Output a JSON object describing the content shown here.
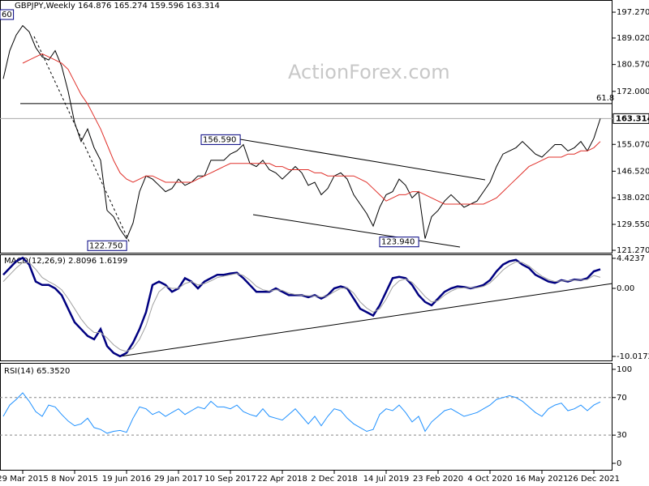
{
  "chart_data": [
    {
      "type": "line",
      "title": "GBPJPY,Weekly  164.876 165.274 159.596 163.314",
      "watermark": "ActionForex.com",
      "categories": [
        null,
        null,
        null,
        "29 Mar 2015",
        null,
        null,
        null,
        null,
        null,
        null,
        null,
        "8 Nov 2015",
        null,
        null,
        null,
        null,
        null,
        null,
        null,
        "19 Jun 2016",
        null,
        null,
        null,
        null,
        null,
        null,
        null,
        "29 Jan 2017",
        null,
        null,
        null,
        null,
        null,
        null,
        null,
        "10 Sep 2017",
        null,
        null,
        null,
        null,
        null,
        null,
        null,
        "22 Apr 2018",
        null,
        null,
        null,
        null,
        null,
        null,
        null,
        "2 Dec 2018",
        null,
        null,
        null,
        null,
        null,
        null,
        null,
        "14 Jul 2019",
        null,
        null,
        null,
        null,
        null,
        null,
        null,
        "23 Feb 2020",
        null,
        null,
        null,
        null,
        null,
        null,
        null,
        "4 Oct 2020",
        null,
        null,
        null,
        null,
        null,
        null,
        null,
        "16 May 2021",
        null,
        null,
        null,
        null,
        null,
        null,
        null,
        "26 Dec 2021",
        null
      ],
      "series": [
        {
          "color": "#000000",
          "values": [
            176,
            185,
            190,
            193,
            191,
            186,
            183,
            182,
            185,
            180,
            172,
            162,
            156,
            160,
            154,
            150,
            134,
            132,
            128,
            125,
            130,
            140,
            145,
            144,
            142,
            140,
            141,
            144,
            142,
            143,
            145,
            145,
            150,
            150,
            150,
            152,
            153,
            155,
            149,
            148,
            150,
            147,
            146,
            144,
            146,
            148,
            146,
            142,
            143,
            139,
            141,
            145,
            146,
            144,
            139,
            136,
            133,
            129,
            135,
            139,
            140,
            144,
            142,
            138,
            140,
            125,
            132,
            134,
            137,
            139,
            137,
            135,
            136,
            137,
            140,
            143,
            148,
            152,
            153,
            154,
            156,
            154,
            152,
            151,
            153,
            155,
            155,
            153,
            154,
            156,
            153,
            157,
            163.314
          ]
        },
        {
          "color": "#e0302a",
          "values": [
            null,
            null,
            null,
            181,
            182,
            183,
            184,
            183,
            182,
            181,
            179,
            175,
            171,
            168,
            164,
            160,
            155,
            150,
            146,
            144,
            143,
            144,
            145,
            145,
            144,
            143,
            143,
            143,
            143,
            143,
            144,
            145,
            146,
            147,
            148,
            149,
            149,
            149,
            149,
            149,
            149,
            149,
            148,
            148,
            147,
            147,
            147,
            147,
            146,
            146,
            145,
            145,
            145,
            145,
            145,
            144,
            143,
            141,
            139,
            137,
            138,
            139,
            139,
            140,
            140,
            139,
            138,
            137,
            136,
            136,
            136,
            136,
            136,
            136,
            136,
            137,
            138,
            140,
            142,
            144,
            146,
            148,
            149,
            150,
            151,
            151,
            151,
            152,
            152,
            153,
            153,
            154,
            156
          ]
        }
      ],
      "ylim": [
        120.5,
        200.9
      ],
      "yticks": [
        {
          "value": 197.27,
          "label": "197.270"
        },
        {
          "value": 189.02,
          "label": "189.020"
        },
        {
          "value": 180.57,
          "label": "180.570"
        },
        {
          "value": 172.0,
          "label": "172.000"
        },
        {
          "value": 155.07,
          "label": "155.070"
        },
        {
          "value": 146.52,
          "label": "146.520"
        },
        {
          "value": 138.02,
          "label": "138.020"
        },
        {
          "value": 129.55,
          "label": "129.550"
        },
        {
          "value": 121.27,
          "label": "121.270"
        }
      ],
      "price_line": {
        "value": 163.314,
        "label": "163.314"
      },
      "fib_line": {
        "value": 168.1,
        "label": "61.8"
      },
      "annotations": [
        {
          "text": "156.590",
          "value": 156.59
        },
        {
          "text": "122.750",
          "value": 122.75
        },
        {
          "text": "123.940",
          "value": 123.94
        },
        {
          "text": "60"
        }
      ]
    },
    {
      "type": "line",
      "title": "MACD(12,26,9) 2.8096 1.6199",
      "series": [
        {
          "color": "#000080",
          "values": [
            2,
            3,
            4,
            4.5,
            3.5,
            1,
            0.5,
            0.5,
            0,
            -1,
            -3,
            -5,
            -6,
            -7,
            -7.5,
            -6,
            -8.5,
            -9.5,
            -10,
            -9.5,
            -8,
            -6,
            -3.5,
            0.5,
            1,
            0.5,
            -0.5,
            0,
            1.5,
            1,
            0,
            1,
            1.5,
            2,
            2,
            2.2,
            2.3,
            1.5,
            0.5,
            -0.5,
            -0.5,
            -0.5,
            0,
            -0.5,
            -1,
            -1,
            -1,
            -1.3,
            -1,
            -1.5,
            -1,
            0,
            0.3,
            0,
            -1.5,
            -3,
            -3.5,
            -4,
            -2.5,
            -0.5,
            1.5,
            1.7,
            1.5,
            0.5,
            -1,
            -2,
            -2.5,
            -1.5,
            -0.5,
            0,
            0.3,
            0.2,
            0,
            0.2,
            0.5,
            1.2,
            2.5,
            3.5,
            4,
            4.2,
            3.5,
            3,
            2,
            1.5,
            1,
            0.8,
            1.2,
            1,
            1.3,
            1.2,
            1.5,
            2.5,
            2.8096
          ]
        },
        {
          "color": "#a0a0a0",
          "values": [
            1,
            2,
            3,
            3.8,
            3.8,
            2.8,
            1.6,
            1,
            0.5,
            -0.2,
            -1.5,
            -3,
            -4.5,
            -5.7,
            -6.5,
            -6.5,
            -7.3,
            -8.3,
            -9,
            -9.3,
            -8.8,
            -7.5,
            -5.5,
            -2.5,
            -0.5,
            0.3,
            0,
            0,
            0.7,
            1,
            0.5,
            0.7,
            1.1,
            1.6,
            1.8,
            2,
            2.2,
            1.9,
            1.2,
            0.3,
            -0.2,
            -0.4,
            -0.2,
            -0.3,
            -0.7,
            -0.9,
            -1,
            -1.1,
            -1.1,
            -1.3,
            -1.1,
            -0.5,
            0,
            0.1,
            -0.7,
            -2,
            -2.9,
            -3.5,
            -3,
            -1.6,
            0.2,
            1.1,
            1.4,
            0.9,
            -0.1,
            -1.2,
            -2,
            -1.8,
            -1,
            -0.4,
            0,
            0.1,
            0.1,
            0.1,
            0.3,
            0.8,
            1.7,
            2.7,
            3.4,
            3.9,
            3.8,
            3.3,
            2.5,
            1.8,
            1.3,
            1,
            1.1,
            1.1,
            1.2,
            1.2,
            1.3,
            1.9,
            1.6199
          ]
        }
      ],
      "ylim": [
        -10.61,
        4.89
      ],
      "yticks": [
        4.4237,
        {
          "value": 0,
          "label": "0.00"
        },
        -10.0172
      ]
    },
    {
      "type": "line",
      "title": "RSI(14) 65.3520",
      "series": [
        {
          "color": "#1e90ff",
          "values": [
            50,
            62,
            68,
            75,
            66,
            55,
            50,
            62,
            60,
            52,
            45,
            40,
            42,
            48,
            38,
            36,
            32,
            34,
            35,
            33,
            48,
            60,
            58,
            52,
            55,
            50,
            54,
            58,
            52,
            56,
            60,
            58,
            66,
            60,
            60,
            58,
            62,
            55,
            52,
            50,
            58,
            50,
            48,
            46,
            52,
            58,
            50,
            42,
            50,
            40,
            50,
            58,
            56,
            48,
            42,
            38,
            34,
            36,
            52,
            58,
            56,
            62,
            54,
            44,
            50,
            34,
            44,
            50,
            56,
            58,
            54,
            50,
            52,
            54,
            58,
            62,
            68,
            70,
            72,
            70,
            66,
            60,
            54,
            50,
            58,
            62,
            64,
            56,
            58,
            62,
            56,
            62,
            65.352
          ]
        }
      ],
      "ylim": [
        -6.9,
        106
      ],
      "yticks": [
        100,
        70,
        30,
        0
      ],
      "levels": [
        70,
        30
      ]
    }
  ]
}
